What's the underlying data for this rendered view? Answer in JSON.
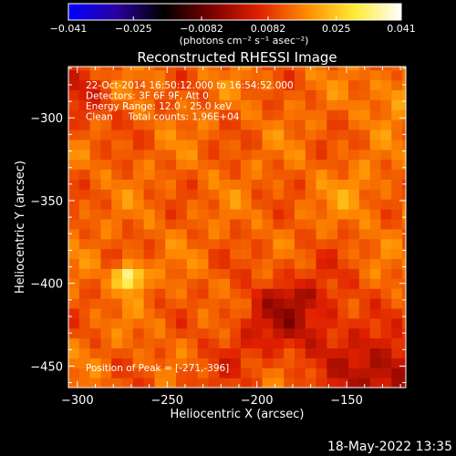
{
  "chart_data": {
    "type": "heatmap",
    "title": "Reconstructed RHESSI Image",
    "xlabel": "Heliocentric X (arcsec)",
    "ylabel": "Heliocentric Y (arcsec)",
    "xlim": [
      -305,
      -117
    ],
    "ylim": [
      -463,
      -269
    ],
    "x_ticks": [
      -300,
      -250,
      -200,
      -150
    ],
    "y_ticks": [
      -300,
      -350,
      -400,
      -450
    ],
    "x_tick_labels": [
      "−300",
      "−250",
      "−200",
      "−150"
    ],
    "y_tick_labels": [
      "−300",
      "−350",
      "−400",
      "−450"
    ],
    "grid": false,
    "colormap": {
      "stops": [
        "#0000ff",
        "#2a00a0",
        "#000000",
        "#7a0000",
        "#e02000",
        "#ff8a00",
        "#ffea30",
        "#ffffff"
      ],
      "range": [
        -0.041,
        0.041
      ],
      "tick_values": [
        -0.041,
        -0.025,
        -0.0082,
        0.0082,
        0.025,
        0.041
      ],
      "tick_labels": [
        "−0.041",
        "−0.025",
        "−0.0082",
        "0.0082",
        "0.025",
        "0.041"
      ],
      "unit_label": "(photons cm⁻² s⁻¹ asec⁻²)"
    },
    "sources": [
      {
        "x": -271,
        "y": -396,
        "value": 0.041
      },
      {
        "x": -145,
        "y": -346,
        "value": 0.018
      },
      {
        "x": -122,
        "y": -285,
        "value": 0.02
      }
    ],
    "annotations": [
      "22-Oct-2014 16:50:12.000 to 16:54:52.000",
      "Detectors: 3F 6F 9F, Att 0",
      "Energy Range: 12.0 - 25.0 keV",
      "Clean     Total counts: 1.96E+04"
    ],
    "peak_label": "Position of Peak = [-271,-396]"
  },
  "footer": {
    "timestamp": "18-May-2022 13:35"
  }
}
